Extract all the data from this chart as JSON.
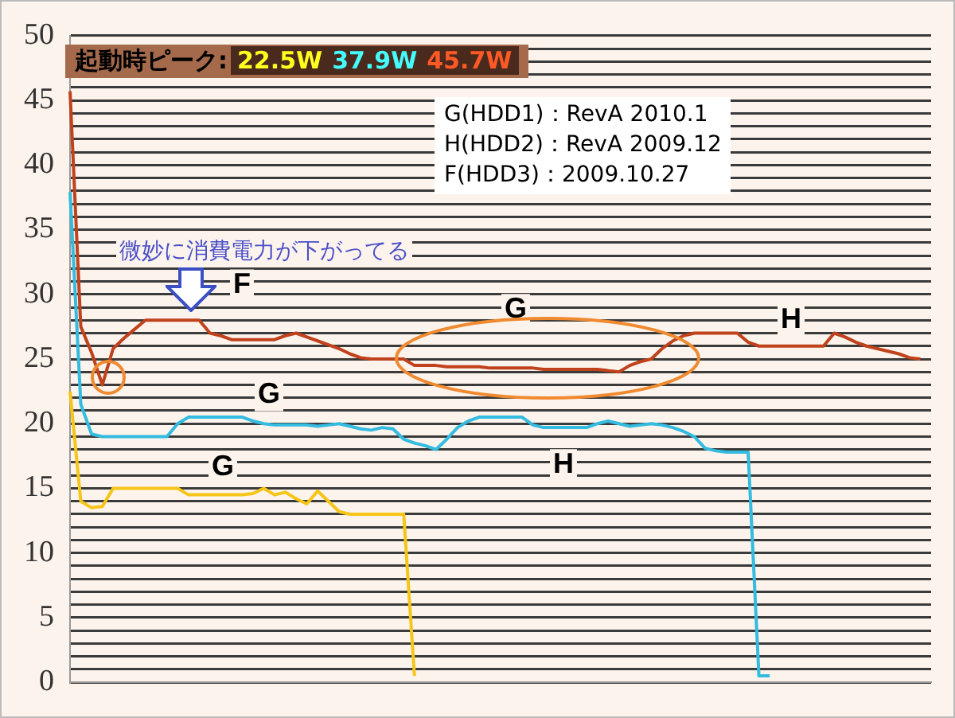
{
  "chart_data": {
    "type": "line",
    "ylim": [
      0,
      50
    ],
    "tick_labels": "y",
    "grid": "y",
    "legend": false,
    "marker": "none",
    "line_style": "solid",
    "categories": [
      null,
      null,
      null,
      null,
      null,
      null,
      null,
      null,
      null,
      null,
      null,
      null,
      null,
      null,
      null,
      null,
      null,
      null,
      null,
      null,
      null,
      null,
      null,
      null,
      null,
      null,
      null,
      null,
      null,
      null,
      null,
      null,
      null,
      null,
      null,
      null,
      null,
      null,
      null,
      null,
      null,
      null,
      null,
      null,
      null,
      null,
      null,
      null,
      null,
      null,
      null,
      null,
      null,
      null,
      null,
      null,
      null,
      null,
      null,
      null,
      null,
      null,
      null,
      null,
      null,
      null,
      null,
      null,
      null,
      null,
      null,
      null,
      null,
      null,
      null,
      null,
      null,
      null,
      null,
      null,
      null
    ],
    "yticks": [
      0,
      {
        "value": 1,
        "label": null
      },
      {
        "value": 2,
        "label": null
      },
      {
        "value": 3,
        "label": null
      },
      {
        "value": 4,
        "label": null
      },
      5,
      {
        "value": 6,
        "label": null
      },
      {
        "value": 7,
        "label": null
      },
      {
        "value": 8,
        "label": null
      },
      {
        "value": 9,
        "label": null
      },
      10,
      {
        "value": 11,
        "label": null
      },
      {
        "value": 12,
        "label": null
      },
      {
        "value": 13,
        "label": null
      },
      {
        "value": 14,
        "label": null
      },
      15,
      {
        "value": 16,
        "label": null
      },
      {
        "value": 17,
        "label": null
      },
      {
        "value": 18,
        "label": null
      },
      {
        "value": 19,
        "label": null
      },
      20,
      {
        "value": 21,
        "label": null
      },
      {
        "value": 22,
        "label": null
      },
      {
        "value": 23,
        "label": null
      },
      {
        "value": 24,
        "label": null
      },
      25,
      {
        "value": 26,
        "label": null
      },
      {
        "value": 27,
        "label": null
      },
      {
        "value": 28,
        "label": null
      },
      {
        "value": 29,
        "label": null
      },
      30,
      {
        "value": 31,
        "label": null
      },
      {
        "value": 32,
        "label": null
      },
      {
        "value": 33,
        "label": null
      },
      {
        "value": 34,
        "label": null
      },
      35,
      {
        "value": 36,
        "label": null
      },
      {
        "value": 37,
        "label": null
      },
      {
        "value": 38,
        "label": null
      },
      {
        "value": 39,
        "label": null
      },
      40,
      {
        "value": 41,
        "label": null
      },
      {
        "value": 42,
        "label": null
      },
      {
        "value": 43,
        "label": null
      },
      {
        "value": 44,
        "label": null
      },
      45,
      {
        "value": 46,
        "label": null
      },
      {
        "value": 47,
        "label": null
      },
      {
        "value": 48,
        "label": null
      },
      {
        "value": 49,
        "label": null
      },
      50
    ],
    "series": [
      {
        "color": "#c0421c",
        "values": [
          45.7,
          27.5,
          25.5,
          23,
          25.8,
          26.6,
          27.3,
          28,
          28,
          28,
          28,
          28,
          28,
          27,
          26.8,
          26.5,
          26.5,
          26.5,
          26.5,
          26.5,
          26.8,
          27,
          26.7,
          26.4,
          26.1,
          25.8,
          25.4,
          25.1,
          25,
          25,
          25,
          25,
          24.5,
          24.5,
          24.5,
          24.4,
          24.4,
          24.4,
          24.4,
          24.3,
          24.3,
          24.3,
          24.3,
          24.3,
          24.2,
          24.2,
          24.2,
          24.2,
          24.2,
          24.2,
          24.1,
          24,
          24.5,
          24.8,
          25,
          25.8,
          26.4,
          26.8,
          27,
          27,
          27,
          27,
          27,
          26.3,
          26,
          26,
          26,
          26,
          26,
          26,
          26,
          27,
          26.7,
          26.3,
          26,
          25.8,
          25.6,
          25.4,
          25.1,
          25,
          null
        ]
      },
      {
        "color": "#33bbe0",
        "values": [
          37.9,
          21.5,
          19.2,
          19,
          19,
          19,
          19,
          19,
          19,
          19,
          20,
          20.5,
          20.5,
          20.5,
          20.5,
          20.5,
          20.5,
          20.2,
          20,
          19.9,
          19.9,
          19.9,
          19.9,
          19.8,
          19.9,
          20,
          19.8,
          19.6,
          19.5,
          19.7,
          19.6,
          18.8,
          18.5,
          18.3,
          18,
          18.8,
          19.7,
          20.2,
          20.5,
          20.5,
          20.5,
          20.5,
          20.5,
          19.9,
          19.7,
          19.7,
          19.7,
          19.7,
          19.7,
          20,
          20.2,
          20,
          19.8,
          19.9,
          20,
          19.9,
          19.7,
          19.4,
          19,
          18.1,
          17.9,
          17.8,
          17.8,
          17.8,
          0.5,
          0.5,
          null,
          null,
          null,
          null,
          null,
          null,
          null,
          null,
          null,
          null,
          null,
          null,
          null,
          null,
          null
        ]
      },
      {
        "color": "#f5c518",
        "values": [
          22.5,
          14,
          13.5,
          13.6,
          15,
          15,
          15,
          15,
          15,
          15,
          15,
          14.5,
          14.5,
          14.5,
          14.5,
          14.5,
          14.5,
          14.6,
          15,
          14.5,
          14.7,
          14.2,
          13.8,
          14.8,
          14,
          13.2,
          13,
          13,
          13,
          13,
          13,
          13,
          0.5,
          null,
          null,
          null,
          null,
          null,
          null,
          null,
          null,
          null,
          null,
          null,
          null,
          null,
          null,
          null,
          null,
          null,
          null,
          null,
          null,
          null,
          null,
          null,
          null,
          null,
          null,
          null,
          null,
          null,
          null,
          null,
          null,
          null,
          null,
          null,
          null,
          null,
          null,
          null,
          null,
          null,
          null,
          null,
          null,
          null,
          null,
          null,
          null
        ]
      }
    ],
    "annotations": [
      "起動時ピーク:",
      "22.5W",
      "37.9W",
      "45.7W",
      "G(HDD1)：RevA 2010.1",
      "H(HDD2)：RevA 2009.12",
      "F(HDD3)：2009.10.27",
      "微妙に消費電力が下がってる",
      {
        "text": "F",
        "y": 30.7
      },
      {
        "text": "G",
        "y": 28.8
      },
      {
        "text": "H",
        "y": 28
      },
      {
        "text": "G",
        "y": 22.2
      },
      {
        "text": "H",
        "y": 16.8
      },
      {
        "text": "G",
        "y": 16.6
      }
    ]
  }
}
